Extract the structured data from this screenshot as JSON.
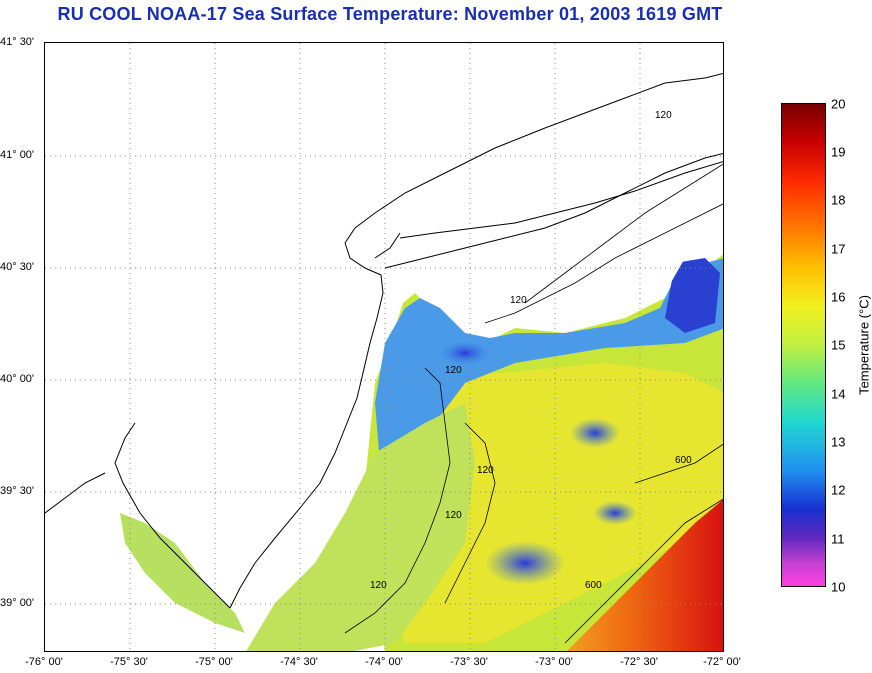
{
  "title": "RU COOL  NOAA-17  Sea Surface Temperature:  November 01, 2003 1619 GMT",
  "map": {
    "lat_labels": [
      "41° 30'",
      "41° 00'",
      "40° 30'",
      "40° 00'",
      "39° 30'",
      "39° 00'"
    ],
    "lon_labels": [
      "-76° 00'",
      "-75° 30'",
      "-75° 00'",
      "-74° 30'",
      "-74° 00'",
      "-73° 30'",
      "-73° 00'",
      "-72° 30'",
      "-72° 00'"
    ],
    "isobath_labels": [
      "120",
      "120",
      "120",
      "120",
      "120",
      "120",
      "600",
      "600"
    ]
  },
  "colorbar": {
    "title": "Temperature (°C)",
    "ticks": [
      "20",
      "19",
      "18",
      "17",
      "16",
      "15",
      "14",
      "13",
      "12",
      "11",
      "10"
    ],
    "min": 10,
    "max": 20
  },
  "colors": {
    "title": "#1a2fb0"
  }
}
